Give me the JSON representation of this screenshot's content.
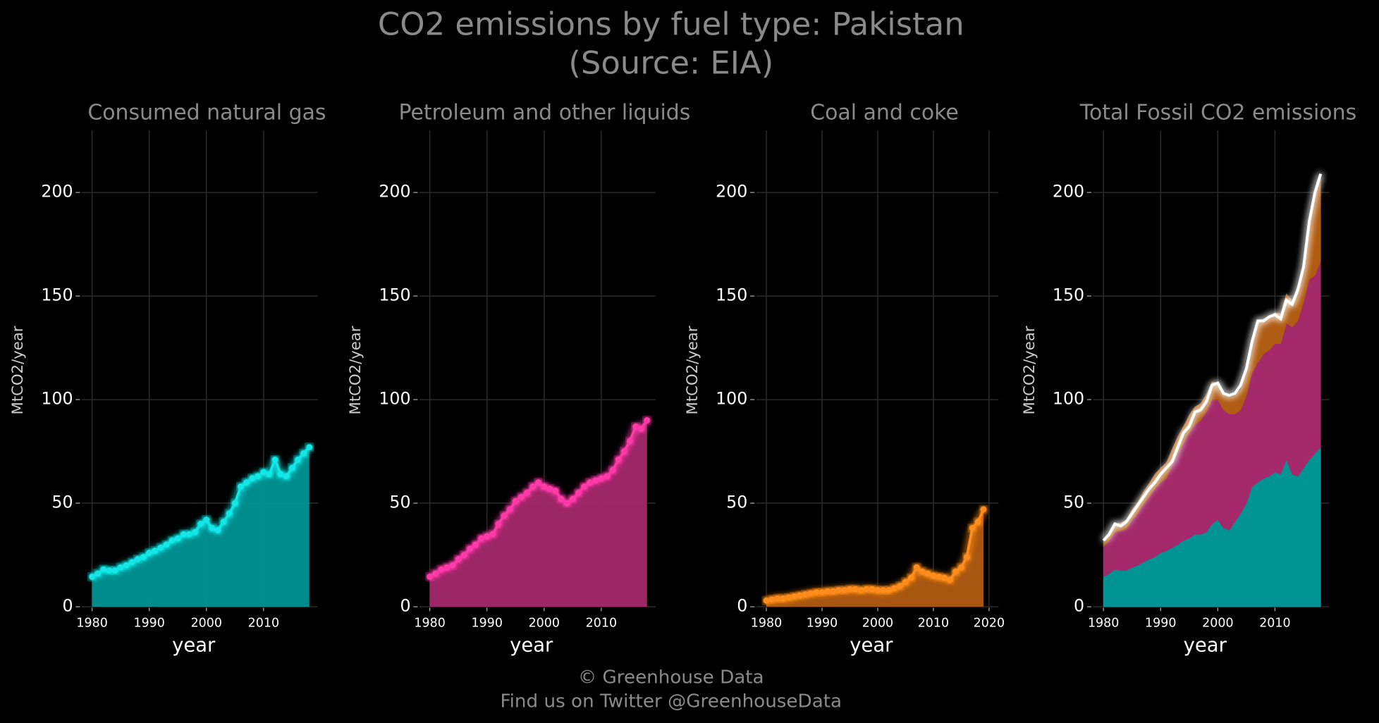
{
  "title": "CO2 emissions by fuel type: Pakistan",
  "subtitle": "(Source: EIA)",
  "footer": [
    "© Greenhouse Data",
    "Find us on Twitter @GreenhouseData"
  ],
  "chart_data": [
    {
      "type": "area",
      "title": "Consumed natural gas",
      "xlabel": "year",
      "ylabel": "MtCO2/year",
      "x": [
        1980,
        1981,
        1982,
        1983,
        1984,
        1985,
        1986,
        1987,
        1988,
        1989,
        1990,
        1991,
        1992,
        1993,
        1994,
        1995,
        1996,
        1997,
        1998,
        1999,
        2000,
        2001,
        2002,
        2003,
        2004,
        2005,
        2006,
        2007,
        2008,
        2009,
        2010,
        2011,
        2012,
        2013,
        2014,
        2015,
        2016,
        2017,
        2018
      ],
      "series": [
        {
          "color": "#19e6e6",
          "fill": "#009494",
          "values": [
            14.5,
            16,
            18,
            17.5,
            17.5,
            19,
            20,
            21.5,
            23,
            24,
            26,
            27,
            28.5,
            30,
            32,
            33,
            35,
            35,
            36,
            40,
            42,
            38,
            37,
            41,
            45,
            50,
            58,
            60,
            62,
            63,
            65,
            64,
            71,
            64,
            63,
            67,
            71,
            74,
            77
          ]
        }
      ],
      "xlim": [
        1978.2,
        2019.5
      ],
      "ylim": [
        0,
        230
      ],
      "xticks": [
        1980,
        1990,
        2000,
        2010
      ],
      "yticks": [
        0,
        50,
        100,
        150,
        200
      ],
      "grid": true
    },
    {
      "type": "area",
      "title": "Petroleum and other liquids",
      "xlabel": "year",
      "ylabel": "MtCO2/year",
      "x": [
        1980,
        1981,
        1982,
        1983,
        1984,
        1985,
        1986,
        1987,
        1988,
        1989,
        1990,
        1991,
        1992,
        1993,
        1994,
        1995,
        1996,
        1997,
        1998,
        1999,
        2000,
        2001,
        2002,
        2003,
        2004,
        2005,
        2006,
        2007,
        2008,
        2009,
        2010,
        2011,
        2012,
        2013,
        2014,
        2015,
        2016,
        2017,
        2018
      ],
      "series": [
        {
          "color": "#ff3aa8",
          "fill": "#a3296b",
          "values": [
            14.5,
            16,
            18,
            19,
            20,
            23,
            25,
            28,
            30,
            33,
            34,
            35,
            40,
            44,
            47,
            51,
            53,
            55,
            58,
            60,
            58,
            57,
            56,
            52,
            50,
            52,
            55,
            58,
            60,
            61,
            62,
            63,
            66,
            71,
            75,
            80,
            87,
            86,
            90
          ]
        }
      ],
      "xlim": [
        1978.2,
        2019.5
      ],
      "ylim": [
        0,
        230
      ],
      "xticks": [
        1980,
        1990,
        2000,
        2010
      ],
      "yticks": [
        0,
        50,
        100,
        150,
        200
      ],
      "grid": true
    },
    {
      "type": "area",
      "title": "Coal and coke",
      "xlabel": "year",
      "ylabel": "MtCO2/year",
      "x": [
        1980,
        1981,
        1982,
        1983,
        1984,
        1985,
        1986,
        1987,
        1988,
        1989,
        1990,
        1991,
        1992,
        1993,
        1994,
        1995,
        1996,
        1997,
        1998,
        1999,
        2000,
        2001,
        2002,
        2003,
        2004,
        2005,
        2006,
        2007,
        2008,
        2009,
        2010,
        2011,
        2012,
        2013,
        2014,
        2015,
        2016,
        2017,
        2018,
        2019
      ],
      "series": [
        {
          "color": "#ff8c1a",
          "fill": "#b05c12",
          "values": [
            3,
            3.5,
            4,
            4,
            4.5,
            5,
            5.5,
            6,
            6.5,
            7,
            7,
            7.5,
            7.5,
            8,
            8,
            8.5,
            8.5,
            8,
            8.5,
            8.5,
            8,
            8,
            8,
            9,
            10,
            12,
            14,
            19,
            17,
            16,
            15,
            14.5,
            14,
            13,
            17,
            19,
            24,
            38,
            41,
            47
          ]
        }
      ],
      "xlim": [
        1978.2,
        2021.7
      ],
      "ylim": [
        0,
        230
      ],
      "xticks": [
        1980,
        1990,
        2000,
        2010,
        2020
      ],
      "yticks": [
        0,
        50,
        100,
        150,
        200
      ],
      "grid": true
    },
    {
      "type": "total",
      "title": "Total Fossil CO2 emissions",
      "xlabel": "year",
      "ylabel": "MtCO2/year",
      "x": [
        1980,
        1981,
        1982,
        1983,
        1984,
        1985,
        1986,
        1987,
        1988,
        1989,
        1990,
        1991,
        1992,
        1993,
        1994,
        1995,
        1996,
        1997,
        1998,
        1999,
        2000,
        2001,
        2002,
        2003,
        2004,
        2005,
        2006,
        2007,
        2008,
        2009,
        2010,
        2011,
        2012,
        2013,
        2014,
        2015,
        2016,
        2017,
        2018
      ],
      "series": [
        {
          "color": "#ffffff",
          "values": [
            32,
            35,
            40,
            39,
            41,
            45,
            49,
            53,
            57,
            60,
            64,
            67,
            70,
            77,
            84,
            87,
            94,
            95,
            99,
            107,
            108,
            103,
            102,
            103,
            107,
            115,
            128,
            138,
            138,
            140,
            141,
            139,
            148,
            146,
            153,
            164,
            186,
            200,
            209
          ]
        }
      ],
      "xlim": [
        1978.2,
        2019.5
      ],
      "ylim": [
        0,
        230
      ],
      "xticks": [
        1980,
        1990,
        2000,
        2010
      ],
      "yticks": [
        0,
        50,
        100,
        150,
        200
      ],
      "grid": true
    }
  ]
}
